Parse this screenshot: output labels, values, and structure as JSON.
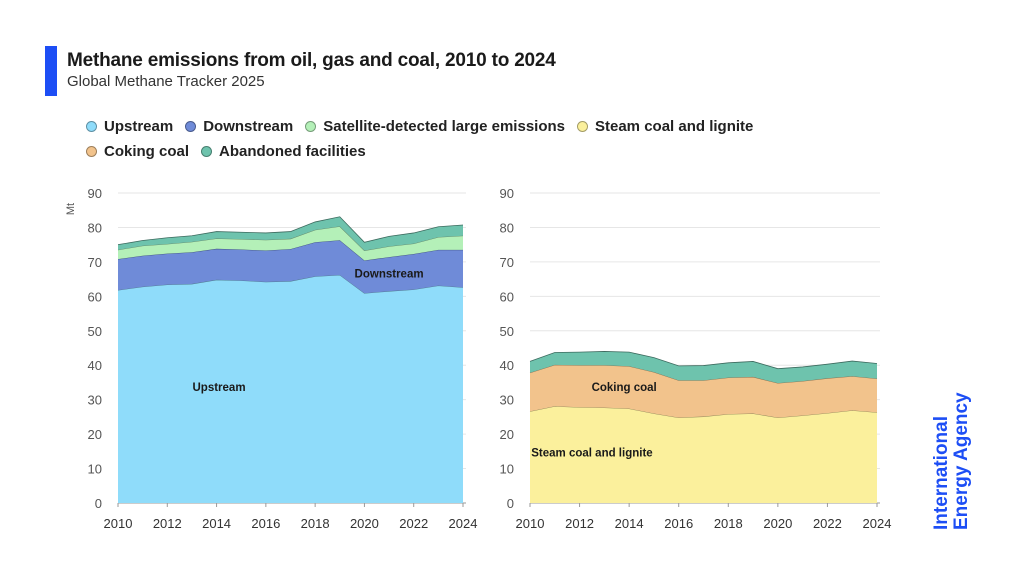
{
  "header": {
    "title": "Methane emissions from oil, gas and coal, 2010 to 2024",
    "subtitle": "Global Methane Tracker 2025"
  },
  "legend": {
    "rows": [
      [
        {
          "label": "Upstream",
          "color": "#8fdcfa"
        },
        {
          "label": "Downstream",
          "color": "#6f8bd8"
        },
        {
          "label": "Satellite-detected large emissions",
          "color": "#b4f0b8"
        },
        {
          "label": "Steam coal and lignite",
          "color": "#fbf09c"
        }
      ],
      [
        {
          "label": "Coking coal",
          "color": "#f2c38c"
        },
        {
          "label": "Abandoned facilities",
          "color": "#6ec3ad"
        }
      ]
    ]
  },
  "brand": {
    "line1": "International",
    "line2": "Energy Agency"
  },
  "chart_data": [
    {
      "type": "area",
      "stacked": true,
      "x": [
        2010,
        2011,
        2012,
        2013,
        2014,
        2015,
        2016,
        2017,
        2018,
        2019,
        2020,
        2021,
        2022,
        2023,
        2024
      ],
      "ylabel": "Mt",
      "ylim": [
        0,
        90
      ],
      "yticks": [
        0,
        10,
        20,
        30,
        40,
        50,
        60,
        70,
        80,
        90
      ],
      "xticks": [
        2010,
        2012,
        2014,
        2016,
        2018,
        2020,
        2022,
        2024
      ],
      "grid": true,
      "series": [
        {
          "name": "Upstream",
          "color": "#8fdcfa",
          "values": [
            61.8,
            62.8,
            63.4,
            63.6,
            64.8,
            64.6,
            64.2,
            64.4,
            65.8,
            66.2,
            60.9,
            61.5,
            62.0,
            63.1,
            62.6
          ]
        },
        {
          "name": "Downstream",
          "color": "#6f8bd8",
          "values": [
            9.0,
            9.0,
            9.0,
            9.2,
            9.0,
            9.0,
            9.1,
            9.3,
            9.9,
            10.1,
            9.5,
            9.9,
            10.3,
            10.4,
            10.9
          ]
        },
        {
          "name": "Satellite-detected large emissions",
          "color": "#b4f0b8",
          "values": [
            2.7,
            2.9,
            2.8,
            3.0,
            3.0,
            3.0,
            3.1,
            3.0,
            3.6,
            4.0,
            2.9,
            3.1,
            3.0,
            3.7,
            4.1
          ]
        },
        {
          "name": "Abandoned facilities",
          "color": "#6ec3ad",
          "values": [
            1.5,
            1.5,
            1.8,
            1.8,
            2.0,
            2.0,
            2.0,
            2.1,
            2.3,
            2.8,
            2.4,
            2.9,
            3.1,
            3.0,
            3.1
          ]
        }
      ],
      "annotations": [
        {
          "text": "Upstream",
          "x": 2014.1,
          "y": 32.5
        },
        {
          "text": "Downstream",
          "x": 2021.0,
          "y": 65.5
        }
      ]
    },
    {
      "type": "area",
      "stacked": true,
      "x": [
        2010,
        2011,
        2012,
        2013,
        2014,
        2015,
        2016,
        2017,
        2018,
        2019,
        2020,
        2021,
        2022,
        2023,
        2024
      ],
      "ylim": [
        0,
        90
      ],
      "yticks": [
        0,
        10,
        20,
        30,
        40,
        50,
        60,
        70,
        80,
        90
      ],
      "xticks": [
        2010,
        2012,
        2014,
        2016,
        2018,
        2020,
        2022,
        2024
      ],
      "grid": true,
      "series": [
        {
          "name": "Steam coal and lignite",
          "color": "#fbf09c",
          "values": [
            26.6,
            28.1,
            27.8,
            27.7,
            27.4,
            26.0,
            24.8,
            25.1,
            25.8,
            26.0,
            24.8,
            25.4,
            26.1,
            26.9,
            26.3
          ]
        },
        {
          "name": "Coking coal",
          "color": "#f2c38c",
          "values": [
            11.2,
            12.0,
            12.2,
            12.3,
            12.3,
            12.0,
            10.8,
            10.5,
            10.6,
            10.6,
            10.0,
            10.0,
            10.1,
            9.9,
            9.8
          ]
        },
        {
          "name": "Abandoned facilities",
          "color": "#6ec3ad",
          "values": [
            3.3,
            3.6,
            3.8,
            4.0,
            4.1,
            4.2,
            4.2,
            4.3,
            4.3,
            4.5,
            4.2,
            4.1,
            4.1,
            4.4,
            4.4
          ]
        }
      ],
      "annotations": [
        {
          "text": "Coking coal",
          "x": 2013.8,
          "y": 32.5
        },
        {
          "text": "Steam coal and lignite",
          "x": 2012.5,
          "y": 13.5
        }
      ]
    }
  ]
}
